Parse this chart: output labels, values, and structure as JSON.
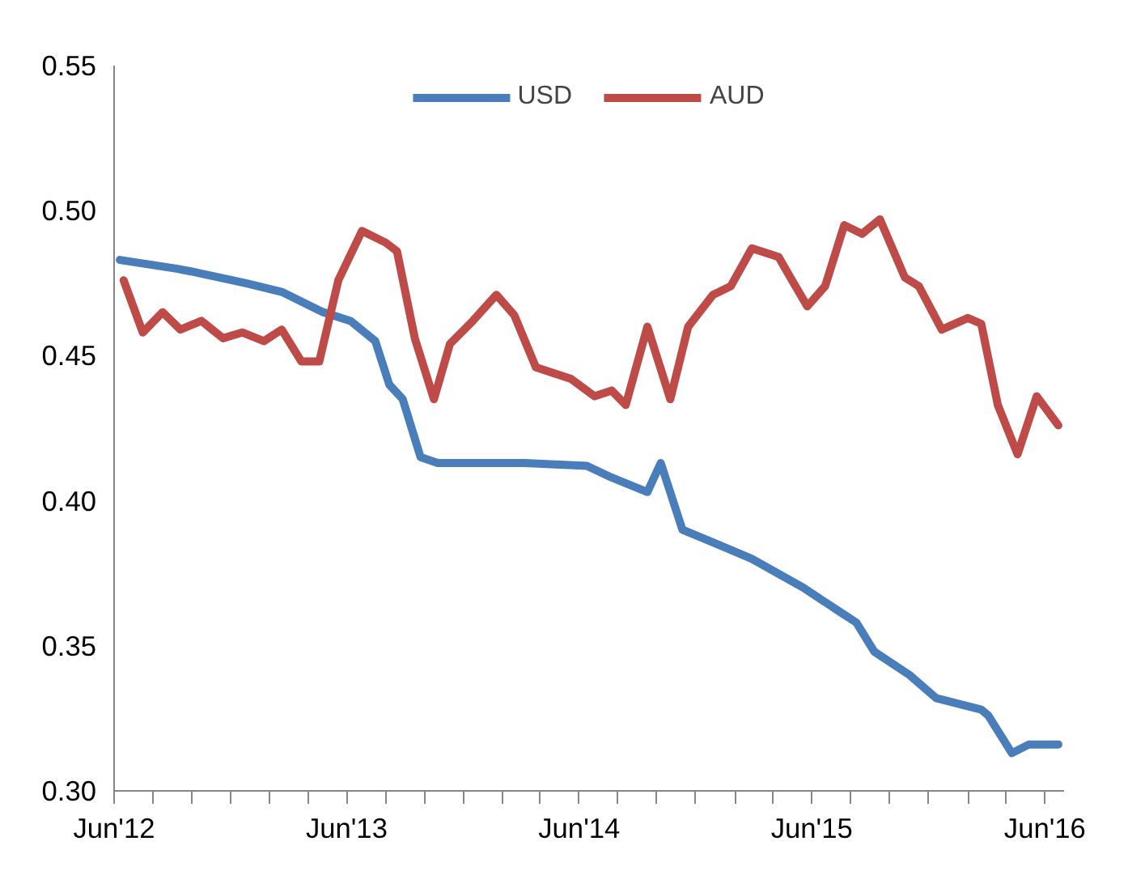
{
  "chart_data": {
    "type": "line",
    "xlim": [
      "2012-06-01",
      "2016-07-01"
    ],
    "ylim": [
      0.3,
      0.55
    ],
    "xticks": [
      {
        "value": "2012-06-01",
        "label": "Jun'12"
      },
      {
        "value": "2012-08-01",
        "label": null
      },
      {
        "value": "2012-10-01",
        "label": null
      },
      {
        "value": "2012-12-01",
        "label": null
      },
      {
        "value": "2013-02-01",
        "label": null
      },
      {
        "value": "2013-04-01",
        "label": null
      },
      {
        "value": "2013-06-01",
        "label": "Jun'13"
      },
      {
        "value": "2013-08-01",
        "label": null
      },
      {
        "value": "2013-10-01",
        "label": null
      },
      {
        "value": "2013-12-01",
        "label": null
      },
      {
        "value": "2014-02-01",
        "label": null
      },
      {
        "value": "2014-04-01",
        "label": null
      },
      {
        "value": "2014-06-01",
        "label": "Jun'14"
      },
      {
        "value": "2014-08-01",
        "label": null
      },
      {
        "value": "2014-10-01",
        "label": null
      },
      {
        "value": "2014-12-01",
        "label": null
      },
      {
        "value": "2015-02-01",
        "label": null
      },
      {
        "value": "2015-04-01",
        "label": null
      },
      {
        "value": "2015-06-01",
        "label": "Jun'15"
      },
      {
        "value": "2015-08-01",
        "label": null
      },
      {
        "value": "2015-10-01",
        "label": null
      },
      {
        "value": "2015-12-01",
        "label": null
      },
      {
        "value": "2016-02-01",
        "label": null
      },
      {
        "value": "2016-04-01",
        "label": null
      },
      {
        "value": "2016-06-01",
        "label": "Jun'16"
      }
    ],
    "yticks": [
      {
        "value": 0.3,
        "label": "0.30"
      },
      {
        "value": 0.35,
        "label": "0.35"
      },
      {
        "value": 0.4,
        "label": "0.40"
      },
      {
        "value": 0.45,
        "label": "0.45"
      },
      {
        "value": 0.5,
        "label": "0.50"
      },
      {
        "value": 0.55,
        "label": "0.55"
      }
    ],
    "grid": false,
    "legend": "top",
    "marker": "none",
    "line_style": "solid",
    "series": [
      {
        "name": "USD",
        "color": "#4a7ebb",
        "x": [
          "2012-06-10",
          "2012-09-07",
          "2012-10-01",
          "2012-12-25",
          "2013-02-19",
          "2013-04-25",
          "2013-06-07",
          "2013-07-16",
          "2013-08-07",
          "2013-08-28",
          "2013-09-25",
          "2013-10-22",
          "2014-03-07",
          "2014-06-13",
          "2014-07-22",
          "2014-09-16",
          "2014-10-07",
          "2014-11-10",
          "2015-01-04",
          "2015-02-27",
          "2015-05-19",
          "2015-07-13",
          "2015-08-10",
          "2015-09-07",
          "2015-11-01",
          "2015-12-13",
          "2016-02-22",
          "2016-03-04",
          "2016-04-10",
          "2016-05-07",
          "2016-06-22"
        ],
        "values": [
          0.483,
          0.48,
          0.479,
          0.475,
          0.472,
          0.465,
          0.462,
          0.455,
          0.44,
          0.435,
          0.415,
          0.413,
          0.413,
          0.412,
          0.408,
          0.403,
          0.413,
          0.39,
          0.385,
          0.38,
          0.37,
          0.362,
          0.358,
          0.348,
          0.34,
          0.332,
          0.328,
          0.326,
          0.313,
          0.316,
          0.316
        ]
      },
      {
        "name": "AUD",
        "color": "#be4b48",
        "x": [
          "2012-06-16",
          "2012-07-16",
          "2012-08-16",
          "2012-09-13",
          "2012-10-16",
          "2012-11-19",
          "2012-12-19",
          "2013-01-22",
          "2013-02-19",
          "2013-03-22",
          "2013-04-19",
          "2013-05-19",
          "2013-06-25",
          "2013-08-01",
          "2013-08-19",
          "2013-09-16",
          "2013-10-16",
          "2013-11-10",
          "2013-12-16",
          "2014-01-22",
          "2014-02-19",
          "2014-03-25",
          "2014-05-19",
          "2014-06-25",
          "2014-07-22",
          "2014-08-13",
          "2014-09-16",
          "2014-10-22",
          "2014-11-19",
          "2014-12-28",
          "2015-01-25",
          "2015-02-27",
          "2015-04-10",
          "2015-05-01",
          "2015-05-25",
          "2015-06-22",
          "2015-07-22",
          "2015-08-19",
          "2015-09-16",
          "2015-10-25",
          "2015-11-16",
          "2015-12-22",
          "2016-02-01",
          "2016-02-22",
          "2016-03-19",
          "2016-04-19",
          "2016-05-19",
          "2016-06-22"
        ],
        "values": [
          0.476,
          0.458,
          0.465,
          0.459,
          0.462,
          0.456,
          0.458,
          0.455,
          0.459,
          0.448,
          0.448,
          0.476,
          0.493,
          0.489,
          0.486,
          0.456,
          0.435,
          0.454,
          0.462,
          0.471,
          0.464,
          0.446,
          0.442,
          0.436,
          0.438,
          0.433,
          0.46,
          0.435,
          0.46,
          0.471,
          0.474,
          0.487,
          0.484,
          0.476,
          0.467,
          0.474,
          0.495,
          0.492,
          0.497,
          0.477,
          0.474,
          0.459,
          0.463,
          0.461,
          0.433,
          0.416,
          0.436,
          0.426
        ]
      }
    ]
  }
}
